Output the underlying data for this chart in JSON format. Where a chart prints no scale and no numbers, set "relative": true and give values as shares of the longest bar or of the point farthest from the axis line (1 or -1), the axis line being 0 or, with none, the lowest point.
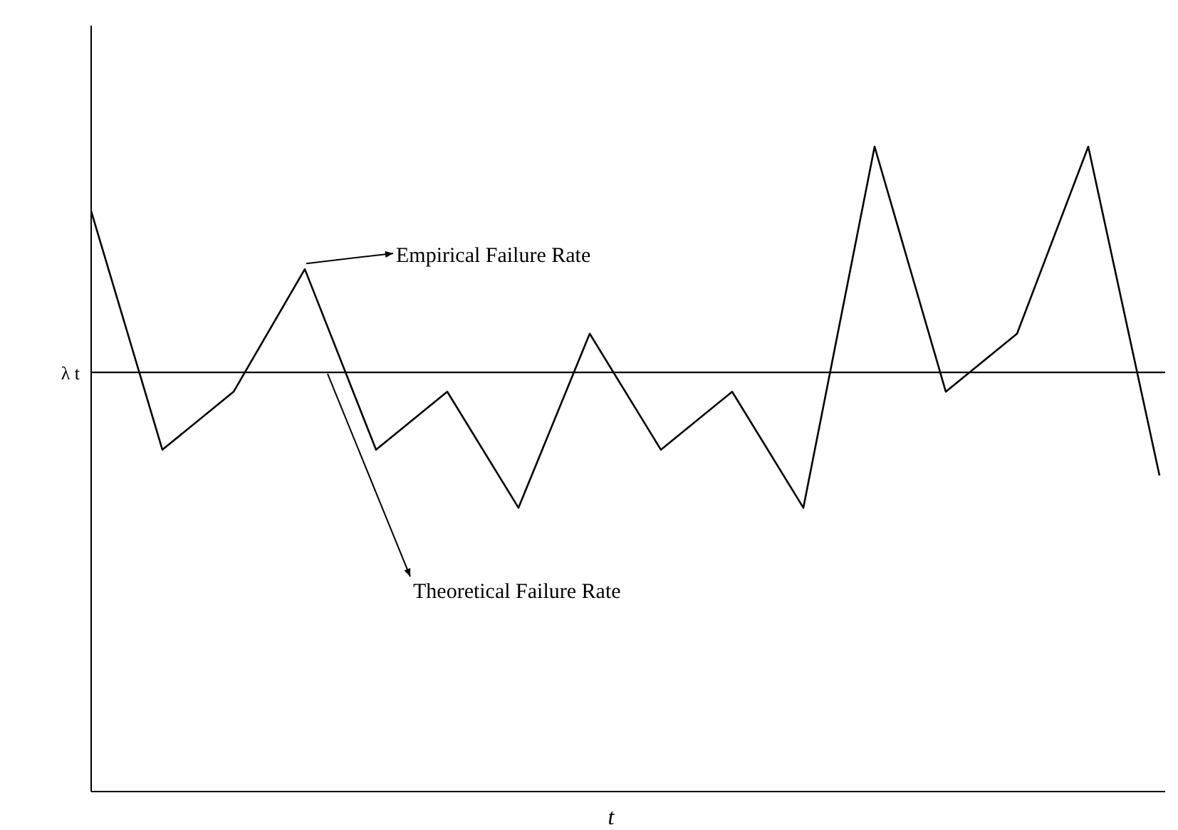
{
  "chart_data": {
    "type": "line",
    "relative": true,
    "xlabel": "t",
    "categories": [
      null,
      null,
      null,
      null,
      null,
      null,
      null,
      null,
      null,
      null,
      null,
      null,
      null,
      null,
      null,
      null
    ],
    "series": [
      {
        "color": "#000000",
        "values": [
          0.9,
          0.53,
          0.62,
          0.81,
          0.53,
          0.62,
          0.44,
          0.71,
          0.53,
          0.62,
          0.44,
          1,
          0.62,
          0.71,
          1,
          0.49
        ]
      }
    ],
    "ref_lines": [
      {
        "axis": "y",
        "value": 0.65,
        "label": "λ t",
        "color": "#000000"
      }
    ],
    "annotations": [
      "Empirical Failure Rate",
      "Theoretical Failure Rate"
    ]
  }
}
